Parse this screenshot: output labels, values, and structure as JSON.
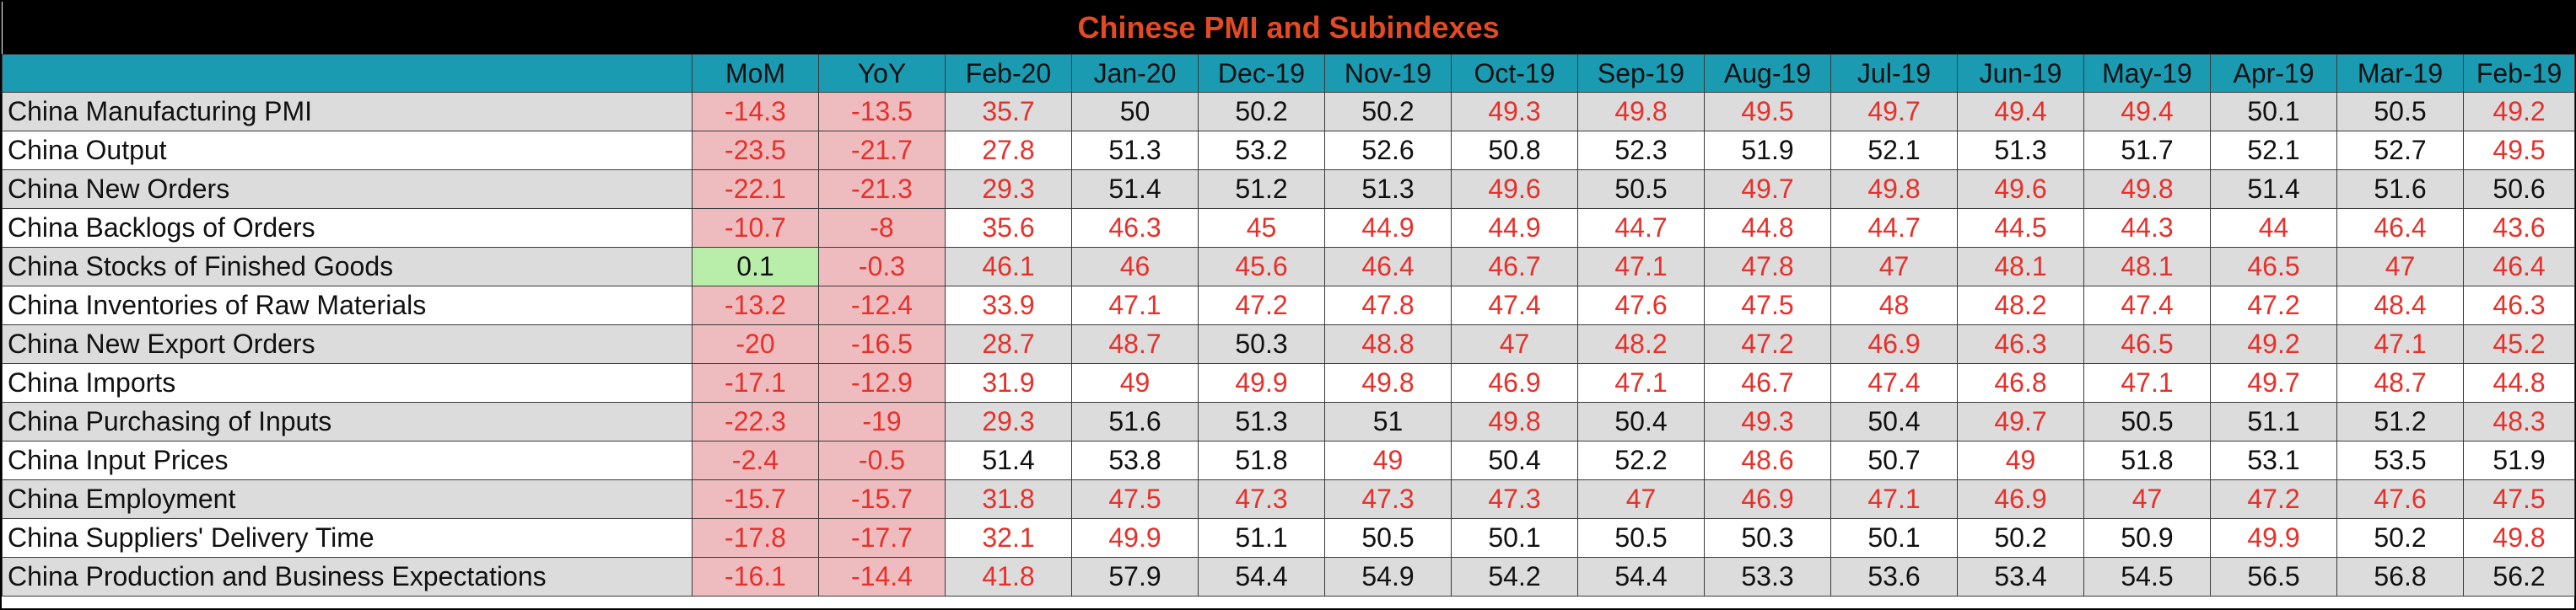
{
  "chart_data": {
    "type": "table",
    "title": "Chinese PMI and Subindexes",
    "threshold": 50,
    "colors": {
      "title_bg": "#000000",
      "title_text": "#e24a23",
      "header_bg": "#1a9bb2",
      "below_50_text": "#e8302a",
      "change_negative_bg": "#eebcbf",
      "change_positive_bg": "#b8eeaa",
      "row_alt_bg": "#dcdcdc"
    },
    "columns": [
      "",
      "MoM",
      "YoY",
      "Feb-20",
      "Jan-20",
      "Dec-19",
      "Nov-19",
      "Oct-19",
      "Sep-19",
      "Aug-19",
      "Jul-19",
      "Jun-19",
      "May-19",
      "Apr-19",
      "Mar-19",
      "Feb-19"
    ],
    "rows": [
      {
        "label": "China Manufacturing PMI",
        "values": [
          -14.3,
          -13.5,
          35.7,
          50,
          50.2,
          50.2,
          49.3,
          49.8,
          49.5,
          49.7,
          49.4,
          49.4,
          50.1,
          50.5,
          49.2
        ]
      },
      {
        "label": "China Output",
        "values": [
          -23.5,
          -21.7,
          27.8,
          51.3,
          53.2,
          52.6,
          50.8,
          52.3,
          51.9,
          52.1,
          51.3,
          51.7,
          52.1,
          52.7,
          49.5
        ]
      },
      {
        "label": "China New Orders",
        "values": [
          -22.1,
          -21.3,
          29.3,
          51.4,
          51.2,
          51.3,
          49.6,
          50.5,
          49.7,
          49.8,
          49.6,
          49.8,
          51.4,
          51.6,
          50.6
        ]
      },
      {
        "label": "China Backlogs of Orders",
        "values": [
          -10.7,
          -8,
          35.6,
          46.3,
          45,
          44.9,
          44.9,
          44.7,
          44.8,
          44.7,
          44.5,
          44.3,
          44,
          46.4,
          43.6
        ]
      },
      {
        "label": "China Stocks of Finished Goods",
        "values": [
          0.1,
          -0.3,
          46.1,
          46,
          45.6,
          46.4,
          46.7,
          47.1,
          47.8,
          47,
          48.1,
          48.1,
          46.5,
          47,
          46.4
        ]
      },
      {
        "label": "China Inventories of Raw Materials",
        "values": [
          -13.2,
          -12.4,
          33.9,
          47.1,
          47.2,
          47.8,
          47.4,
          47.6,
          47.5,
          48,
          48.2,
          47.4,
          47.2,
          48.4,
          46.3
        ]
      },
      {
        "label": "China New Export Orders",
        "values": [
          -20,
          -16.5,
          28.7,
          48.7,
          50.3,
          48.8,
          47,
          48.2,
          47.2,
          46.9,
          46.3,
          46.5,
          49.2,
          47.1,
          45.2
        ]
      },
      {
        "label": "China Imports",
        "values": [
          -17.1,
          -12.9,
          31.9,
          49,
          49.9,
          49.8,
          46.9,
          47.1,
          46.7,
          47.4,
          46.8,
          47.1,
          49.7,
          48.7,
          44.8
        ]
      },
      {
        "label": "China Purchasing of Inputs",
        "values": [
          -22.3,
          -19,
          29.3,
          51.6,
          51.3,
          51,
          49.8,
          50.4,
          49.3,
          50.4,
          49.7,
          50.5,
          51.1,
          51.2,
          48.3
        ]
      },
      {
        "label": "China Input Prices",
        "values": [
          -2.4,
          -0.5,
          51.4,
          53.8,
          51.8,
          49,
          50.4,
          52.2,
          48.6,
          50.7,
          49,
          51.8,
          53.1,
          53.5,
          51.9
        ]
      },
      {
        "label": "China Employment",
        "values": [
          -15.7,
          -15.7,
          31.8,
          47.5,
          47.3,
          47.3,
          47.3,
          47,
          46.9,
          47.1,
          46.9,
          47,
          47.2,
          47.6,
          47.5
        ]
      },
      {
        "label": "China Suppliers' Delivery Time",
        "values": [
          -17.8,
          -17.7,
          32.1,
          49.9,
          51.1,
          50.5,
          50.1,
          50.5,
          50.3,
          50.1,
          50.2,
          50.9,
          49.9,
          50.2,
          49.8
        ]
      },
      {
        "label": "China Production and Business Expectations",
        "values": [
          -16.1,
          -14.4,
          41.8,
          57.9,
          54.4,
          54.9,
          54.2,
          54.4,
          53.3,
          53.6,
          53.4,
          54.5,
          56.5,
          56.8,
          56.2
        ]
      }
    ]
  }
}
